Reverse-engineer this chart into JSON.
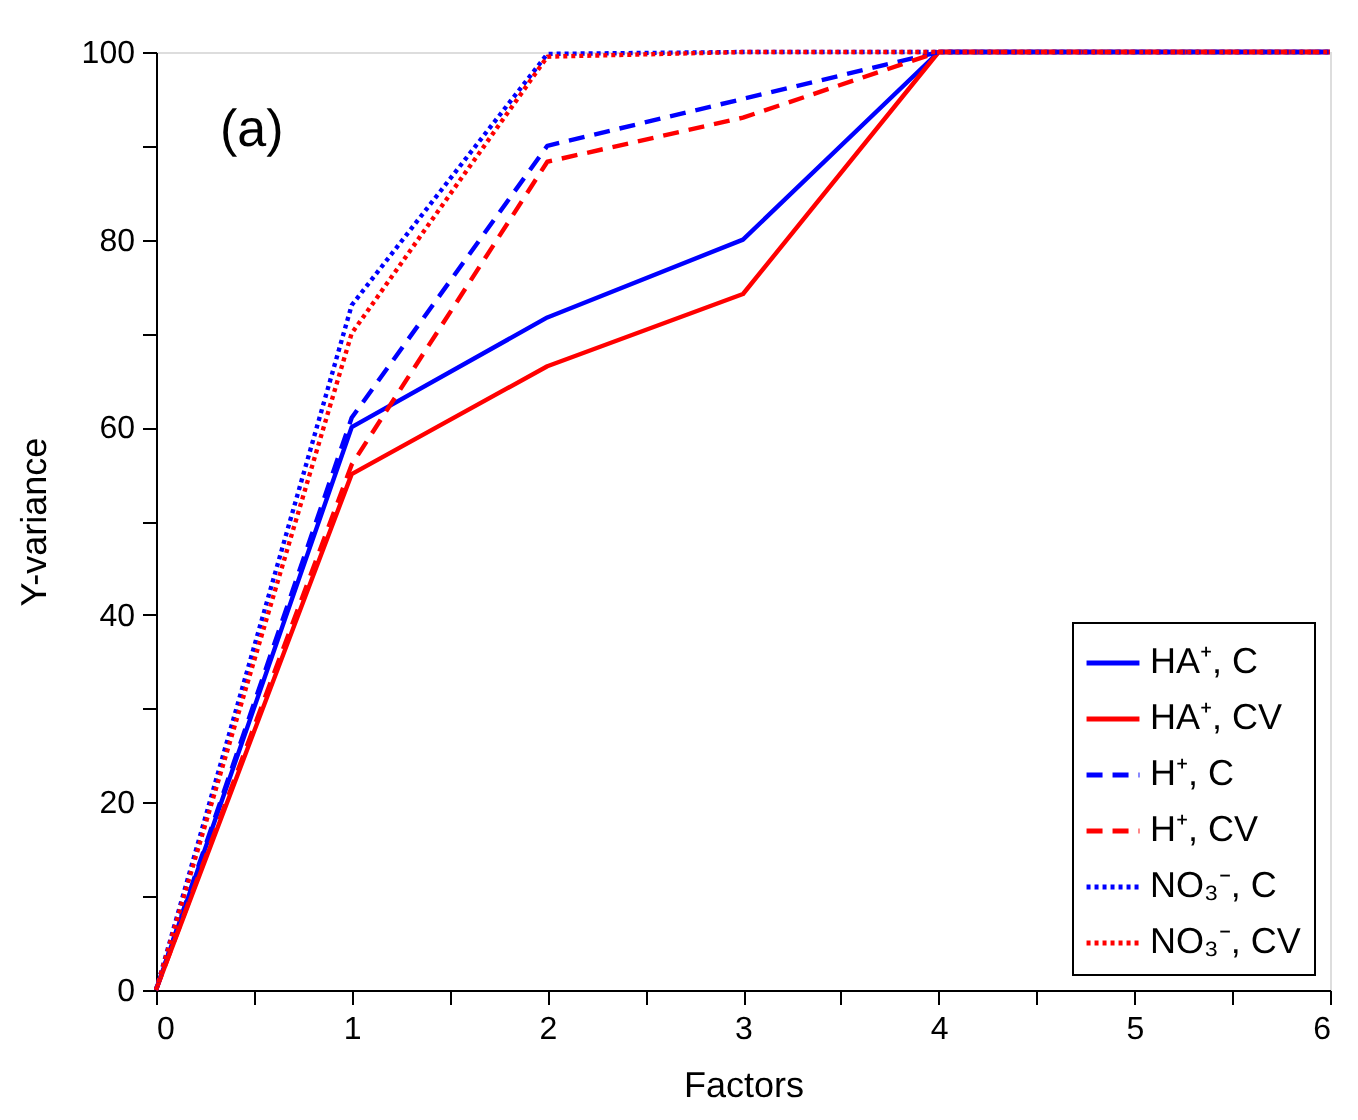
{
  "chart_data": {
    "type": "line",
    "xlabel": "Factors",
    "ylabel": "Y-variance",
    "annotations": [
      "(a)"
    ],
    "x": [
      0,
      1,
      2,
      3,
      4,
      5,
      6
    ],
    "series": [
      {
        "name": "HA⁺, C",
        "color": "#0000ff",
        "line_style": "solid",
        "values": [
          0,
          60,
          71.7,
          80,
          100,
          100,
          100
        ]
      },
      {
        "name": "HA⁺, CV",
        "color": "#ff0000",
        "line_style": "solid",
        "values": [
          0,
          55,
          66.5,
          74.2,
          100,
          100,
          100
        ]
      },
      {
        "name": "H⁺, C",
        "color": "#0000ff",
        "line_style": "dashed",
        "values": [
          0,
          61,
          90,
          95,
          100,
          100,
          100
        ]
      },
      {
        "name": "H⁺, CV",
        "color": "#ff0000",
        "line_style": "dashed",
        "values": [
          0,
          56,
          88.3,
          93,
          100,
          100,
          100
        ]
      },
      {
        "name": "NO₃⁻, C",
        "color": "#0000ff",
        "line_style": "dotted",
        "values": [
          0,
          73,
          99.8,
          100,
          100,
          100,
          100
        ]
      },
      {
        "name": "NO₃⁻, CV",
        "color": "#ff0000",
        "line_style": "dotted",
        "values": [
          0,
          70,
          99.5,
          100,
          100,
          100,
          100
        ]
      }
    ],
    "xlim": [
      0,
      6
    ],
    "ylim": [
      0,
      100
    ],
    "xticks": [
      0,
      {
        "value": 0.5,
        "label": null
      },
      1,
      {
        "value": 1.5,
        "label": null
      },
      2,
      {
        "value": 2.5,
        "label": null
      },
      3,
      {
        "value": 3.5,
        "label": null
      },
      4,
      {
        "value": 4.5,
        "label": null
      },
      5,
      {
        "value": 5.5,
        "label": null
      },
      6
    ],
    "yticks": [
      0,
      {
        "value": 10,
        "label": null
      },
      20,
      {
        "value": 30,
        "label": null
      },
      40,
      {
        "value": 50,
        "label": null
      },
      60,
      {
        "value": 70,
        "label": null
      },
      80,
      {
        "value": 90,
        "label": null
      },
      100
    ],
    "grid": false,
    "legend": "bottom right",
    "marker": "none"
  }
}
